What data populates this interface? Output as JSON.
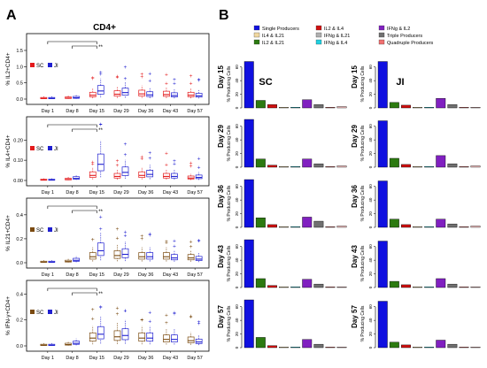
{
  "panel_a": {
    "letter": "A",
    "title": "CD4+",
    "legend": [
      {
        "label": "SC",
        "color": "#e31a1c"
      },
      {
        "label": "JI",
        "color": "#2020d0"
      }
    ],
    "legend_alt": [
      {
        "label": "SC",
        "color": "#7a4a10"
      },
      {
        "label": "JI",
        "color": "#2020d0"
      }
    ],
    "days": [
      "Day 1",
      "Day 8",
      "Day 15",
      "Day 29",
      "Day 36",
      "Day 43",
      "Day 57"
    ],
    "significance": "**",
    "plots": [
      {
        "ylabel": "% IL2+CD4+",
        "yticks": [
          "0.0",
          "0.5",
          "1.0",
          "1.5"
        ],
        "ymax": 1.8,
        "sc_color": "#e31a1c",
        "ji_color": "#2020d0",
        "sc_median": [
          0.02,
          0.03,
          0.12,
          0.15,
          0.16,
          0.14,
          0.12
        ],
        "ji_median": [
          0.02,
          0.04,
          0.25,
          0.2,
          0.13,
          0.11,
          0.1
        ]
      },
      {
        "ylabel": "% IL4+CD4+",
        "yticks": [
          "0.00",
          "0.10",
          "0.20"
        ],
        "ymax": 0.28,
        "sc_color": "#e31a1c",
        "ji_color": "#2020d0",
        "sc_median": [
          0.002,
          0.005,
          0.025,
          0.02,
          0.025,
          0.02,
          0.012
        ],
        "ji_median": [
          0.002,
          0.01,
          0.08,
          0.04,
          0.03,
          0.02,
          0.015
        ]
      },
      {
        "ylabel": "% IL21+CD4+",
        "yticks": [
          "0.0",
          "0.2",
          "0.4"
        ],
        "ymax": 0.48,
        "sc_color": "#7a4a10",
        "ji_color": "#2020d0",
        "sc_median": [
          0.005,
          0.01,
          0.05,
          0.06,
          0.05,
          0.05,
          0.04
        ],
        "ji_median": [
          0.005,
          0.02,
          0.1,
          0.07,
          0.05,
          0.04,
          0.03
        ]
      },
      {
        "ylabel": "% IFN-γ+CD4+",
        "yticks": [
          "0.0",
          "0.2",
          "0.4"
        ],
        "ymax": 0.45,
        "sc_color": "#7a4a10",
        "ji_color": "#2020d0",
        "sc_median": [
          0.005,
          0.01,
          0.06,
          0.07,
          0.06,
          0.05,
          0.04
        ],
        "ji_median": [
          0.005,
          0.02,
          0.09,
          0.08,
          0.06,
          0.05,
          0.03
        ]
      }
    ]
  },
  "panel_b": {
    "letter": "B",
    "columns": [
      "SC",
      "JI"
    ],
    "ylabel": "% Producing Cells",
    "yticks": [
      "0",
      "20",
      "40",
      "60"
    ],
    "ymax": 70,
    "legend": [
      {
        "label": "Single Producers",
        "color": "#1010e0"
      },
      {
        "label": "IL2 & IL4",
        "color": "#d01010"
      },
      {
        "label": "IFNg & IL2",
        "color": "#8020c0"
      },
      {
        "label": "IL4 & IL21",
        "color": "#f0d8a0"
      },
      {
        "label": "IFNg & IL21",
        "color": "#b0b0b0"
      },
      {
        "label": "Triple Producers",
        "color": "#707070"
      },
      {
        "label": "IL2 & IL21",
        "color": "#2c7a10"
      },
      {
        "label": "IFNg & IL4",
        "color": "#20d0e0"
      },
      {
        "label": "Quadruple Producers",
        "color": "#f07070"
      }
    ],
    "bar_colors": [
      "#1010e0",
      "#2c7a10",
      "#d01010",
      "#f0d8a0",
      "#20d0e0",
      "#8020c0",
      "#707070",
      "#f07070",
      "#ffc8c8"
    ],
    "rows": [
      {
        "day": "Day 15",
        "sc": [
          68,
          11,
          5,
          1,
          1,
          12,
          5,
          1,
          2
        ],
        "ji": [
          68,
          8,
          4,
          1,
          1,
          14,
          5,
          1,
          1
        ]
      },
      {
        "day": "Day 29",
        "sc": [
          70,
          12,
          3,
          1,
          1,
          12,
          5,
          1,
          2
        ],
        "ji": [
          68,
          13,
          4,
          1,
          1,
          17,
          5,
          1,
          2
        ]
      },
      {
        "day": "Day 36",
        "sc": [
          70,
          14,
          4,
          1,
          1,
          15,
          9,
          1,
          2
        ],
        "ji": [
          68,
          12,
          4,
          1,
          1,
          12,
          5,
          1,
          2
        ]
      },
      {
        "day": "Day 43",
        "sc": [
          70,
          13,
          3,
          1,
          1,
          12,
          5,
          1,
          1
        ],
        "ji": [
          68,
          9,
          4,
          1,
          1,
          13,
          5,
          1,
          1
        ]
      },
      {
        "day": "Day 57",
        "sc": [
          70,
          15,
          3,
          1,
          1,
          12,
          5,
          1,
          1
        ],
        "ji": [
          68,
          8,
          4,
          1,
          1,
          11,
          5,
          1,
          1
        ]
      }
    ]
  }
}
